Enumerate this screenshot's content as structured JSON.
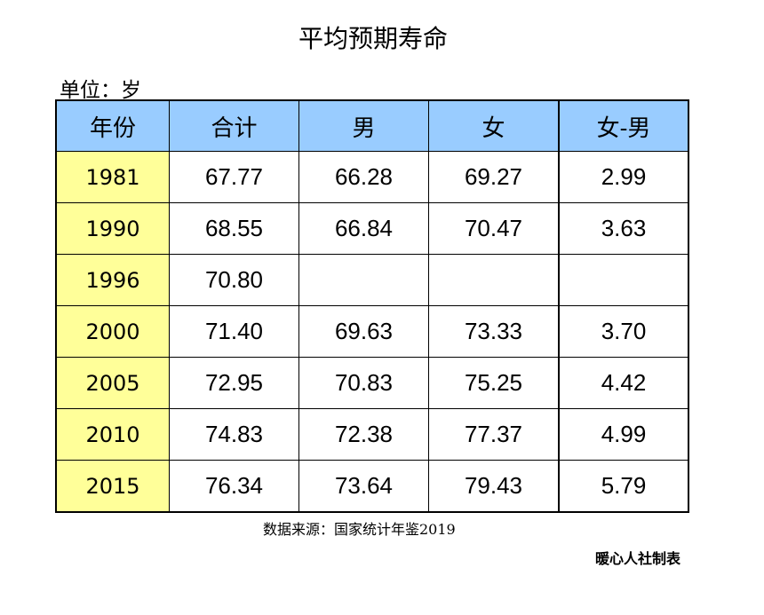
{
  "title": "平均预期寿命",
  "unit_label": "单位：岁",
  "table": {
    "headers": [
      "年份",
      "合计",
      "男",
      "女",
      "女-男"
    ],
    "rows": [
      [
        "1981",
        "67.77",
        "66.28",
        "69.27",
        "2.99"
      ],
      [
        "1990",
        "68.55",
        "66.84",
        "70.47",
        "3.63"
      ],
      [
        "1996",
        "70.80",
        "",
        "",
        ""
      ],
      [
        "2000",
        "71.40",
        "69.63",
        "73.33",
        "3.70"
      ],
      [
        "2005",
        "72.95",
        "70.83",
        "75.25",
        "4.42"
      ],
      [
        "2010",
        "74.83",
        "72.38",
        "77.37",
        "4.99"
      ],
      [
        "2015",
        "76.34",
        "73.64",
        "79.43",
        "5.79"
      ]
    ]
  },
  "source": "数据来源：国家统计年鉴2019",
  "credit": "暖心人社制表",
  "colors": {
    "header_bg": "#99ccff",
    "year_bg": "#ffff99",
    "border": "#000000"
  },
  "chart_data": {
    "type": "table",
    "title": "平均预期寿命",
    "unit": "岁",
    "columns": [
      "年份",
      "合计",
      "男",
      "女",
      "女-男"
    ],
    "categories": [
      "1981",
      "1990",
      "1996",
      "2000",
      "2005",
      "2010",
      "2015"
    ],
    "series": [
      {
        "name": "合计",
        "values": [
          67.77,
          68.55,
          70.8,
          71.4,
          72.95,
          74.83,
          76.34
        ]
      },
      {
        "name": "男",
        "values": [
          66.28,
          66.84,
          null,
          69.63,
          70.83,
          72.38,
          73.64
        ]
      },
      {
        "name": "女",
        "values": [
          69.27,
          70.47,
          null,
          73.33,
          75.25,
          77.37,
          79.43
        ]
      },
      {
        "name": "女-男",
        "values": [
          2.99,
          3.63,
          null,
          3.7,
          4.42,
          4.99,
          5.79
        ]
      }
    ],
    "source": "数据来源：国家统计年鉴2019",
    "credit": "暖心人社制表"
  }
}
